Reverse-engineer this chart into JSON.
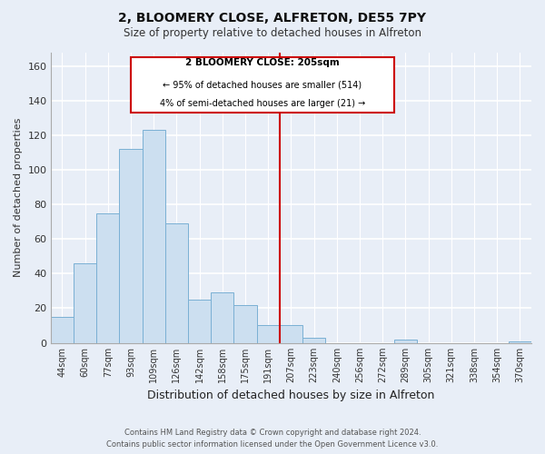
{
  "title1": "2, BLOOMERY CLOSE, ALFRETON, DE55 7PY",
  "title2": "Size of property relative to detached houses in Alfreton",
  "xlabel": "Distribution of detached houses by size in Alfreton",
  "ylabel": "Number of detached properties",
  "bar_labels": [
    "44sqm",
    "60sqm",
    "77sqm",
    "93sqm",
    "109sqm",
    "126sqm",
    "142sqm",
    "158sqm",
    "175sqm",
    "191sqm",
    "207sqm",
    "223sqm",
    "240sqm",
    "256sqm",
    "272sqm",
    "289sqm",
    "305sqm",
    "321sqm",
    "338sqm",
    "354sqm",
    "370sqm"
  ],
  "bar_values": [
    15,
    46,
    75,
    112,
    123,
    69,
    25,
    29,
    22,
    10,
    10,
    3,
    0,
    0,
    0,
    2,
    0,
    0,
    0,
    0,
    1
  ],
  "bar_color": "#ccdff0",
  "bar_edge_color": "#7ab0d4",
  "vline_color": "#cc0000",
  "annotation_title": "2 BLOOMERY CLOSE: 205sqm",
  "annotation_line1": "← 95% of detached houses are smaller (514)",
  "annotation_line2": "4% of semi-detached houses are larger (21) →",
  "ylim": [
    0,
    168
  ],
  "yticks": [
    0,
    20,
    40,
    60,
    80,
    100,
    120,
    140,
    160
  ],
  "footer1": "Contains HM Land Registry data © Crown copyright and database right 2024.",
  "footer2": "Contains public sector information licensed under the Open Government Licence v3.0.",
  "bg_color": "#e8eef7"
}
